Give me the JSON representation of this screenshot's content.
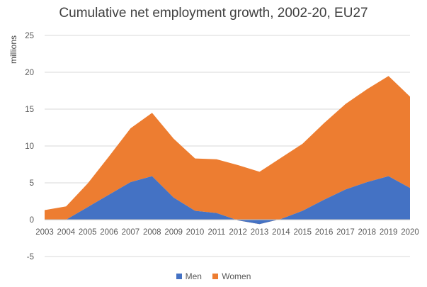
{
  "chart_data": {
    "type": "area",
    "stacked": true,
    "title": "Cumulative net employment growth, 2002-20, EU27",
    "xlabel": "",
    "ylabel": "millions",
    "ylim": [
      -5,
      25
    ],
    "yticks": [
      -5,
      0,
      5,
      10,
      15,
      20,
      25
    ],
    "grid": true,
    "legend": "bottom",
    "categories": [
      "2003",
      "2004",
      "2005",
      "2006",
      "2007",
      "2008",
      "2009",
      "2010",
      "2011",
      "2012",
      "2013",
      "2014",
      "2015",
      "2016",
      "2017",
      "2018",
      "2019",
      "2020"
    ],
    "series": [
      {
        "name": "Men",
        "color": "#4472C4",
        "values": [
          0.0,
          0.0,
          1.7,
          3.4,
          5.1,
          5.9,
          3.0,
          1.2,
          0.9,
          -0.1,
          -0.6,
          0.1,
          1.2,
          2.7,
          4.1,
          5.1,
          5.9,
          4.3
        ]
      },
      {
        "name": "Women",
        "color": "#ED7D31",
        "values": [
          1.3,
          1.8,
          3.2,
          5.2,
          7.3,
          8.6,
          8.0,
          7.1,
          7.3,
          7.5,
          7.1,
          8.3,
          9.1,
          10.4,
          11.6,
          12.6,
          13.6,
          12.4
        ]
      }
    ]
  }
}
